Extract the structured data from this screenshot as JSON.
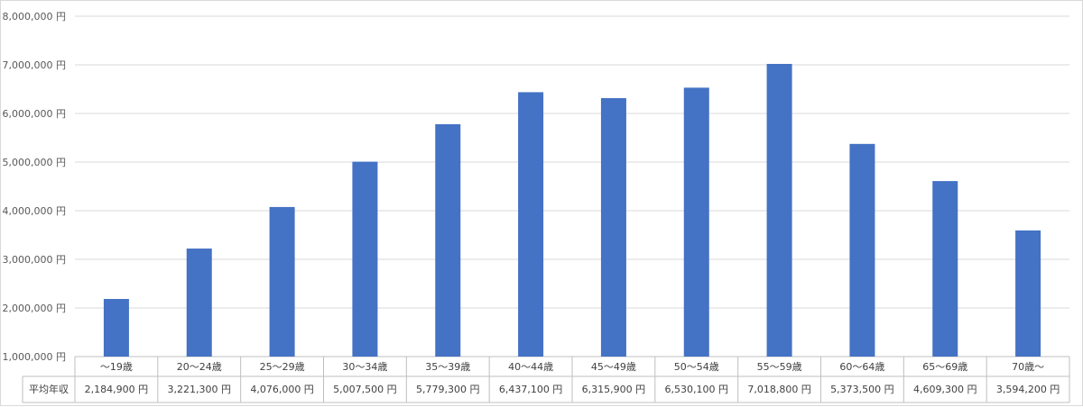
{
  "chart_data": {
    "type": "bar",
    "categories": [
      "～19歳",
      "20～24歳",
      "25～29歳",
      "30～34歳",
      "35～39歳",
      "40～44歳",
      "45～49歳",
      "50～54歳",
      "55～59歳",
      "60～64歳",
      "65～69歳",
      "70歳～"
    ],
    "series": [
      {
        "name": "平均年収",
        "values": [
          2184900,
          3221300,
          4076000,
          5007500,
          5779300,
          6437100,
          6315900,
          6530100,
          7018800,
          5373500,
          4609300,
          3594200
        ],
        "labels": [
          "2,184,900 円",
          "3,221,300 円",
          "4,076,000 円",
          "5,007,500 円",
          "5,779,300 円",
          "6,437,100 円",
          "6,315,900 円",
          "6,530,100 円",
          "7,018,800 円",
          "5,373,500 円",
          "4,609,300 円",
          "3,594,200 円"
        ],
        "color": "#4472c4"
      }
    ],
    "ylim": [
      1000000,
      8000000
    ],
    "yticks": [
      1000000,
      2000000,
      3000000,
      4000000,
      5000000,
      6000000,
      7000000,
      8000000
    ],
    "ytick_labels": [
      "1,000,000 円",
      "2,000,000 円",
      "3,000,000 円",
      "4,000,000 円",
      "5,000,000 円",
      "6,000,000 円",
      "7,000,000 円",
      "8,000,000 円"
    ],
    "grid": true,
    "data_table": true
  }
}
